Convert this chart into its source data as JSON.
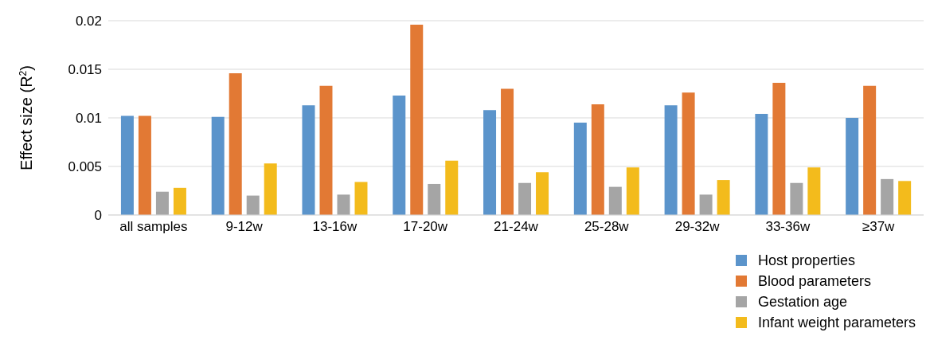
{
  "chart_data": {
    "type": "bar",
    "ylabel": "Effect size (R$^{2}$)",
    "categories": [
      "all samples",
      "9-12w",
      "13-16w",
      "17-20w",
      "21-24w",
      "25-28w",
      "29-32w",
      "33-36w",
      "≥37w"
    ],
    "series": [
      {
        "name": "Host properties",
        "color": "#5b94cb",
        "values": [
          0.0102,
          0.0101,
          0.0113,
          0.0123,
          0.0108,
          0.0095,
          0.0113,
          0.0104,
          0.01
        ]
      },
      {
        "name": "Blood parameters",
        "color": "#e27934",
        "values": [
          0.0102,
          0.0146,
          0.0133,
          0.0196,
          0.013,
          0.0114,
          0.0126,
          0.0136,
          0.0133
        ]
      },
      {
        "name": "Gestation age",
        "color": "#a5a5a5",
        "values": [
          0.0024,
          0.002,
          0.0021,
          0.0032,
          0.0033,
          0.0029,
          0.0021,
          0.0033,
          0.0037
        ]
      },
      {
        "name": "Infant weight parameters",
        "color": "#f3bb1c",
        "values": [
          0.0028,
          0.0053,
          0.0034,
          0.0056,
          0.0044,
          0.0049,
          0.0036,
          0.0049,
          0.0035
        ]
      }
    ],
    "ylim": [
      0,
      0.02
    ],
    "yticks": [
      0,
      0.005,
      0.01,
      0.015,
      0.02
    ],
    "grid": "y",
    "legend": "bottom right"
  }
}
